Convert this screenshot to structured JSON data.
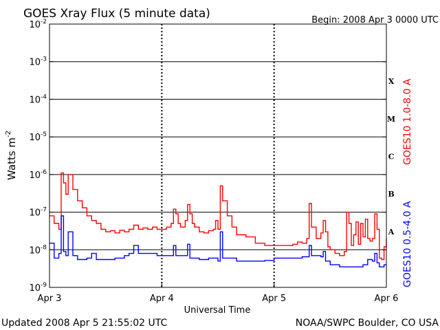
{
  "chart_data": {
    "type": "line",
    "title": "GOES Xray Flux (5 minute data)",
    "begin_label": "Begin:  2008 Apr 3 0000 UTC",
    "ylabel_base": "Watts m",
    "ylabel_exp": "-2",
    "xlabel": "Universal Time",
    "y_scale": "log",
    "ylim": [
      1e-09,
      0.01
    ],
    "y_ticks": [
      {
        "base": "10",
        "exp": "-9",
        "value": 1e-09
      },
      {
        "base": "10",
        "exp": "-8",
        "value": 1e-08
      },
      {
        "base": "10",
        "exp": "-7",
        "value": 1e-07
      },
      {
        "base": "10",
        "exp": "-6",
        "value": 1e-06
      },
      {
        "base": "10",
        "exp": "-5",
        "value": 1e-05
      },
      {
        "base": "10",
        "exp": "-4",
        "value": 0.0001
      },
      {
        "base": "10",
        "exp": "-3",
        "value": 0.001
      },
      {
        "base": "10",
        "exp": "-2",
        "value": 0.01
      }
    ],
    "xlim": [
      "2008-04-03 00:00",
      "2008-04-06 00:00"
    ],
    "x_ticks": [
      {
        "label": "Apr 3",
        "time": "2008-04-03 00:00"
      },
      {
        "label": "Apr 4",
        "time": "2008-04-04 00:00"
      },
      {
        "label": "Apr 5",
        "time": "2008-04-05 00:00"
      },
      {
        "label": "Apr 6",
        "time": "2008-04-06 00:00"
      }
    ],
    "flare_classes": [
      {
        "label": "A",
        "min": 1e-08,
        "max": 1e-07
      },
      {
        "label": "B",
        "min": 1e-07,
        "max": 1e-06
      },
      {
        "label": "C",
        "min": 1e-06,
        "max": 1e-05
      },
      {
        "label": "M",
        "min": 1e-05,
        "max": 0.0001
      },
      {
        "label": "X",
        "min": 0.0001,
        "max": 0.001
      }
    ],
    "grid": "horizontal lines at 1e-8 through 1e-3; dotted vertical day markers",
    "series": [
      {
        "name": "GOES10 1.0-8.0 A",
        "color": "#ff0000",
        "points": [
          [
            "2008-04-03 00:00",
            8e-08
          ],
          [
            "2008-04-03 01:00",
            5e-08
          ],
          [
            "2008-04-03 02:00",
            3.5e-08
          ],
          [
            "2008-04-03 02:30",
            1.1e-06
          ],
          [
            "2008-04-03 03:00",
            6e-07
          ],
          [
            "2008-04-03 03:30",
            3e-07
          ],
          [
            "2008-04-03 04:00",
            1e-06
          ],
          [
            "2008-04-03 05:00",
            4e-07
          ],
          [
            "2008-04-03 06:00",
            2e-07
          ],
          [
            "2008-04-03 07:00",
            1.3e-07
          ],
          [
            "2008-04-03 08:00",
            8e-08
          ],
          [
            "2008-04-03 09:00",
            6e-08
          ],
          [
            "2008-04-03 10:00",
            5e-08
          ],
          [
            "2008-04-03 11:00",
            3.5e-08
          ],
          [
            "2008-04-03 12:00",
            3e-08
          ],
          [
            "2008-04-03 13:00",
            3.2e-08
          ],
          [
            "2008-04-03 14:00",
            2.8e-08
          ],
          [
            "2008-04-03 15:00",
            3.3e-08
          ],
          [
            "2008-04-03 16:00",
            3e-08
          ],
          [
            "2008-04-03 17:00",
            3.5e-08
          ],
          [
            "2008-04-03 18:00",
            4.5e-08
          ],
          [
            "2008-04-03 19:00",
            3.5e-08
          ],
          [
            "2008-04-03 20:00",
            3.8e-08
          ],
          [
            "2008-04-03 21:00",
            3.5e-08
          ],
          [
            "2008-04-03 22:00",
            4e-08
          ],
          [
            "2008-04-03 23:00",
            3.5e-08
          ],
          [
            "2008-04-04 00:00",
            3.5e-08
          ],
          [
            "2008-04-04 01:00",
            4e-08
          ],
          [
            "2008-04-04 02:00",
            5e-08
          ],
          [
            "2008-04-04 02:30",
            1.2e-07
          ],
          [
            "2008-04-04 03:00",
            9e-08
          ],
          [
            "2008-04-04 03:30",
            5e-08
          ],
          [
            "2008-04-04 04:00",
            4e-08
          ],
          [
            "2008-04-04 05:00",
            6e-08
          ],
          [
            "2008-04-04 05:30",
            1.6e-07
          ],
          [
            "2008-04-04 06:00",
            9e-08
          ],
          [
            "2008-04-04 06:30",
            5e-08
          ],
          [
            "2008-04-04 07:00",
            4e-08
          ],
          [
            "2008-04-04 08:00",
            3e-08
          ],
          [
            "2008-04-04 09:00",
            2.8e-08
          ],
          [
            "2008-04-04 10:00",
            3.2e-08
          ],
          [
            "2008-04-04 11:00",
            3.5e-08
          ],
          [
            "2008-04-04 11:30",
            6e-08
          ],
          [
            "2008-04-04 12:00",
            3.5e-08
          ],
          [
            "2008-04-04 12:30",
            5e-07
          ],
          [
            "2008-04-04 13:00",
            2e-07
          ],
          [
            "2008-04-04 14:00",
            8e-08
          ],
          [
            "2008-04-04 15:00",
            4e-08
          ],
          [
            "2008-04-04 16:00",
            2.5e-08
          ],
          [
            "2008-04-04 18:00",
            2.2e-08
          ],
          [
            "2008-04-04 20:00",
            1.5e-08
          ],
          [
            "2008-04-04 22:00",
            1.3e-08
          ],
          [
            "2008-04-05 00:00",
            1.3e-08
          ],
          [
            "2008-04-05 02:00",
            1.3e-08
          ],
          [
            "2008-04-05 04:00",
            1.4e-08
          ],
          [
            "2008-04-05 05:00",
            1.6e-08
          ],
          [
            "2008-04-05 06:00",
            1.5e-08
          ],
          [
            "2008-04-05 07:00",
            2e-08
          ],
          [
            "2008-04-05 07:30",
            1.7e-07
          ],
          [
            "2008-04-05 08:00",
            4e-08
          ],
          [
            "2008-04-05 09:00",
            2e-08
          ],
          [
            "2008-04-05 10:00",
            2.8e-08
          ],
          [
            "2008-04-05 10:30",
            6e-08
          ],
          [
            "2008-04-05 11:00",
            3e-08
          ],
          [
            "2008-04-05 11:30",
            1.2e-08
          ],
          [
            "2008-04-05 12:00",
            1e-08
          ],
          [
            "2008-04-05 13:00",
            8e-09
          ],
          [
            "2008-04-05 14:00",
            7e-09
          ],
          [
            "2008-04-05 15:00",
            9e-09
          ],
          [
            "2008-04-05 15:30",
            1e-07
          ],
          [
            "2008-04-05 16:00",
            5e-08
          ],
          [
            "2008-04-05 16:30",
            1.3e-08
          ],
          [
            "2008-04-05 17:00",
            2.5e-08
          ],
          [
            "2008-04-05 17:30",
            5.5e-08
          ],
          [
            "2008-04-05 18:00",
            1.4e-08
          ],
          [
            "2008-04-05 18:30",
            5e-08
          ],
          [
            "2008-04-05 19:00",
            2.2e-08
          ],
          [
            "2008-04-05 19:30",
            6.5e-08
          ],
          [
            "2008-04-05 20:00",
            2e-08
          ],
          [
            "2008-04-05 20:30",
            1.7e-08
          ],
          [
            "2008-04-05 21:00",
            2e-08
          ],
          [
            "2008-04-05 21:30",
            9e-08
          ],
          [
            "2008-04-05 22:00",
            3.5e-08
          ],
          [
            "2008-04-05 22:30",
            6e-09
          ],
          [
            "2008-04-05 23:00",
            5.5e-09
          ],
          [
            "2008-04-05 23:30",
            1.2e-08
          ],
          [
            "2008-04-06 00:00",
            2e-08
          ]
        ]
      },
      {
        "name": "GOES10 0.5-4.0 A",
        "color": "#0000ff",
        "points": [
          [
            "2008-04-03 00:00",
            1.5e-08
          ],
          [
            "2008-04-03 01:00",
            6e-09
          ],
          [
            "2008-04-03 02:00",
            8e-09
          ],
          [
            "2008-04-03 02:30",
            8e-08
          ],
          [
            "2008-04-03 03:00",
            9e-09
          ],
          [
            "2008-04-03 03:30",
            7e-09
          ],
          [
            "2008-04-03 04:00",
            3e-08
          ],
          [
            "2008-04-03 05:00",
            7e-09
          ],
          [
            "2008-04-03 06:00",
            5.5e-09
          ],
          [
            "2008-04-03 08:00",
            6e-09
          ],
          [
            "2008-04-03 09:00",
            8e-09
          ],
          [
            "2008-04-03 10:00",
            5.5e-09
          ],
          [
            "2008-04-03 12:00",
            5.5e-09
          ],
          [
            "2008-04-03 14:00",
            6e-09
          ],
          [
            "2008-04-03 16:00",
            7e-09
          ],
          [
            "2008-04-03 17:00",
            8e-09
          ],
          [
            "2008-04-03 18:00",
            1.3e-08
          ],
          [
            "2008-04-03 19:00",
            8e-09
          ],
          [
            "2008-04-03 21:00",
            8e-09
          ],
          [
            "2008-04-03 23:00",
            7e-09
          ],
          [
            "2008-04-04 01:00",
            7e-09
          ],
          [
            "2008-04-04 02:30",
            1.3e-08
          ],
          [
            "2008-04-04 03:00",
            7e-09
          ],
          [
            "2008-04-04 05:00",
            7e-09
          ],
          [
            "2008-04-04 05:30",
            1.4e-08
          ],
          [
            "2008-04-04 06:00",
            6e-09
          ],
          [
            "2008-04-04 08:00",
            5.5e-09
          ],
          [
            "2008-04-04 10:00",
            6e-09
          ],
          [
            "2008-04-04 12:00",
            5e-09
          ],
          [
            "2008-04-04 12:30",
            3e-08
          ],
          [
            "2008-04-04 13:00",
            6e-09
          ],
          [
            "2008-04-04 16:00",
            5e-09
          ],
          [
            "2008-04-04 20:00",
            5e-09
          ],
          [
            "2008-04-04 22:00",
            5.2e-09
          ],
          [
            "2008-04-05 00:00",
            6e-09
          ],
          [
            "2008-04-05 04:00",
            6e-09
          ],
          [
            "2008-04-05 06:00",
            6.5e-09
          ],
          [
            "2008-04-05 07:30",
            1.3e-08
          ],
          [
            "2008-04-05 08:00",
            7e-09
          ],
          [
            "2008-04-05 10:00",
            6.5e-09
          ],
          [
            "2008-04-05 10:30",
            9e-09
          ],
          [
            "2008-04-05 11:00",
            5e-09
          ],
          [
            "2008-04-05 12:00",
            4e-09
          ],
          [
            "2008-04-05 14:00",
            3.5e-09
          ],
          [
            "2008-04-05 15:00",
            3.5e-09
          ],
          [
            "2008-04-05 16:00",
            3.5e-09
          ],
          [
            "2008-04-05 18:00",
            3.5e-09
          ],
          [
            "2008-04-05 19:00",
            4e-09
          ],
          [
            "2008-04-05 20:00",
            5.5e-09
          ],
          [
            "2008-04-05 21:00",
            5e-09
          ],
          [
            "2008-04-05 21:30",
            8e-09
          ],
          [
            "2008-04-05 22:00",
            4.5e-09
          ],
          [
            "2008-04-05 22:30",
            3.5e-09
          ],
          [
            "2008-04-05 23:00",
            3.5e-09
          ],
          [
            "2008-04-05 23:30",
            4e-09
          ],
          [
            "2008-04-06 00:00",
            4e-09
          ]
        ]
      }
    ]
  },
  "footer": {
    "updated": "Updated 2008 Apr  5 21:55:02 UTC",
    "credit": "NOAA/SWPC Boulder, CO USA"
  }
}
